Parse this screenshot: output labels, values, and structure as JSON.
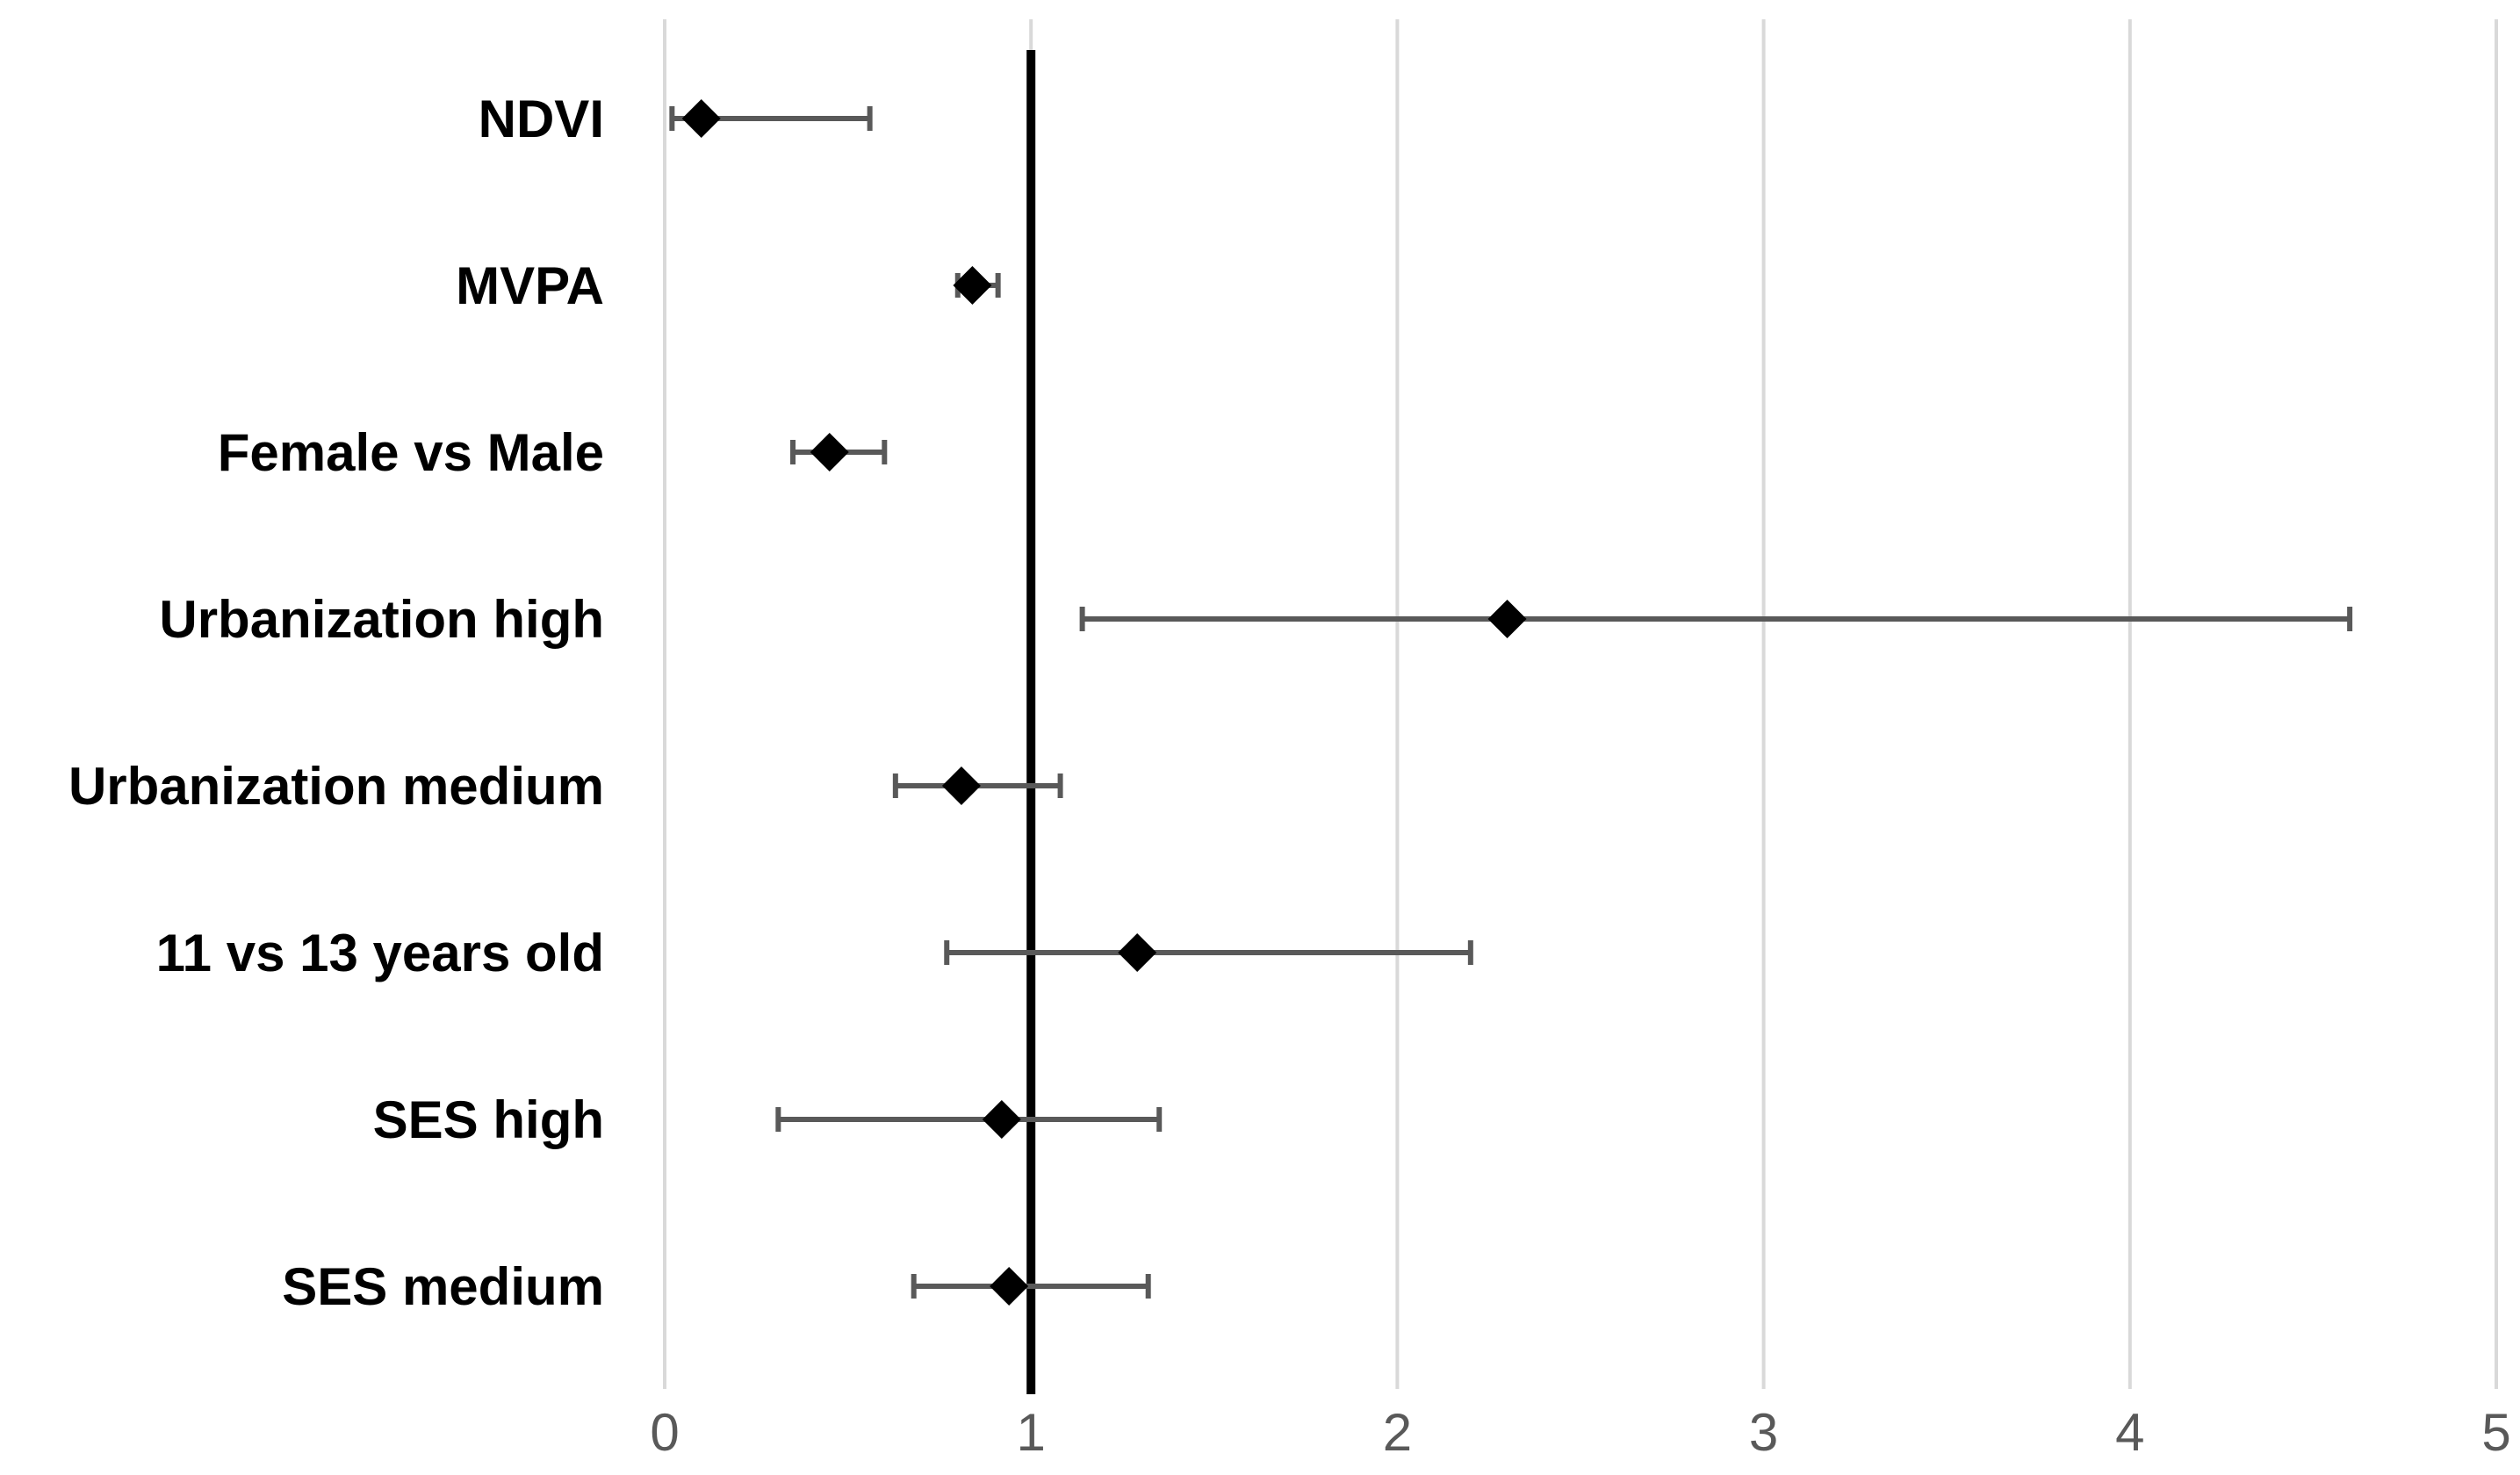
{
  "chart_data": {
    "type": "scatter",
    "subtype": "forest-plot",
    "title": "",
    "xlabel": "",
    "ylabel": "",
    "xlim": [
      0,
      5
    ],
    "xticks": [
      0,
      1,
      2,
      3,
      4,
      5
    ],
    "grid": "vertical",
    "reference_line": 1,
    "categories": [
      "NDVI",
      "MVPA",
      "Female vs Male",
      "Urbanization high",
      "Urbanization medium",
      "11 vs 13 years old",
      "SES high",
      "SES medium"
    ],
    "series": [
      {
        "points": [
          {
            "category": "NDVI",
            "estimate": 0.1,
            "lower": 0.02,
            "upper": 0.56
          },
          {
            "category": "MVPA",
            "estimate": 0.84,
            "lower": 0.8,
            "upper": 0.91
          },
          {
            "category": "Female vs Male",
            "estimate": 0.45,
            "lower": 0.35,
            "upper": 0.6
          },
          {
            "category": "Urbanization high",
            "estimate": 2.3,
            "lower": 1.14,
            "upper": 4.6
          },
          {
            "category": "Urbanization medium",
            "estimate": 0.81,
            "lower": 0.63,
            "upper": 1.08
          },
          {
            "category": "11 vs 13 years old",
            "estimate": 1.29,
            "lower": 0.77,
            "upper": 2.2
          },
          {
            "category": "SES high",
            "estimate": 0.92,
            "lower": 0.31,
            "upper": 1.35
          },
          {
            "category": "SES medium",
            "estimate": 0.94,
            "lower": 0.68,
            "upper": 1.32
          }
        ]
      }
    ],
    "colors": {
      "marker": "#000000",
      "errorbar": "#595959",
      "grid": "#d9d9d9",
      "reference": "#000000",
      "tick_text": "#595959",
      "label_text": "#000000"
    }
  }
}
